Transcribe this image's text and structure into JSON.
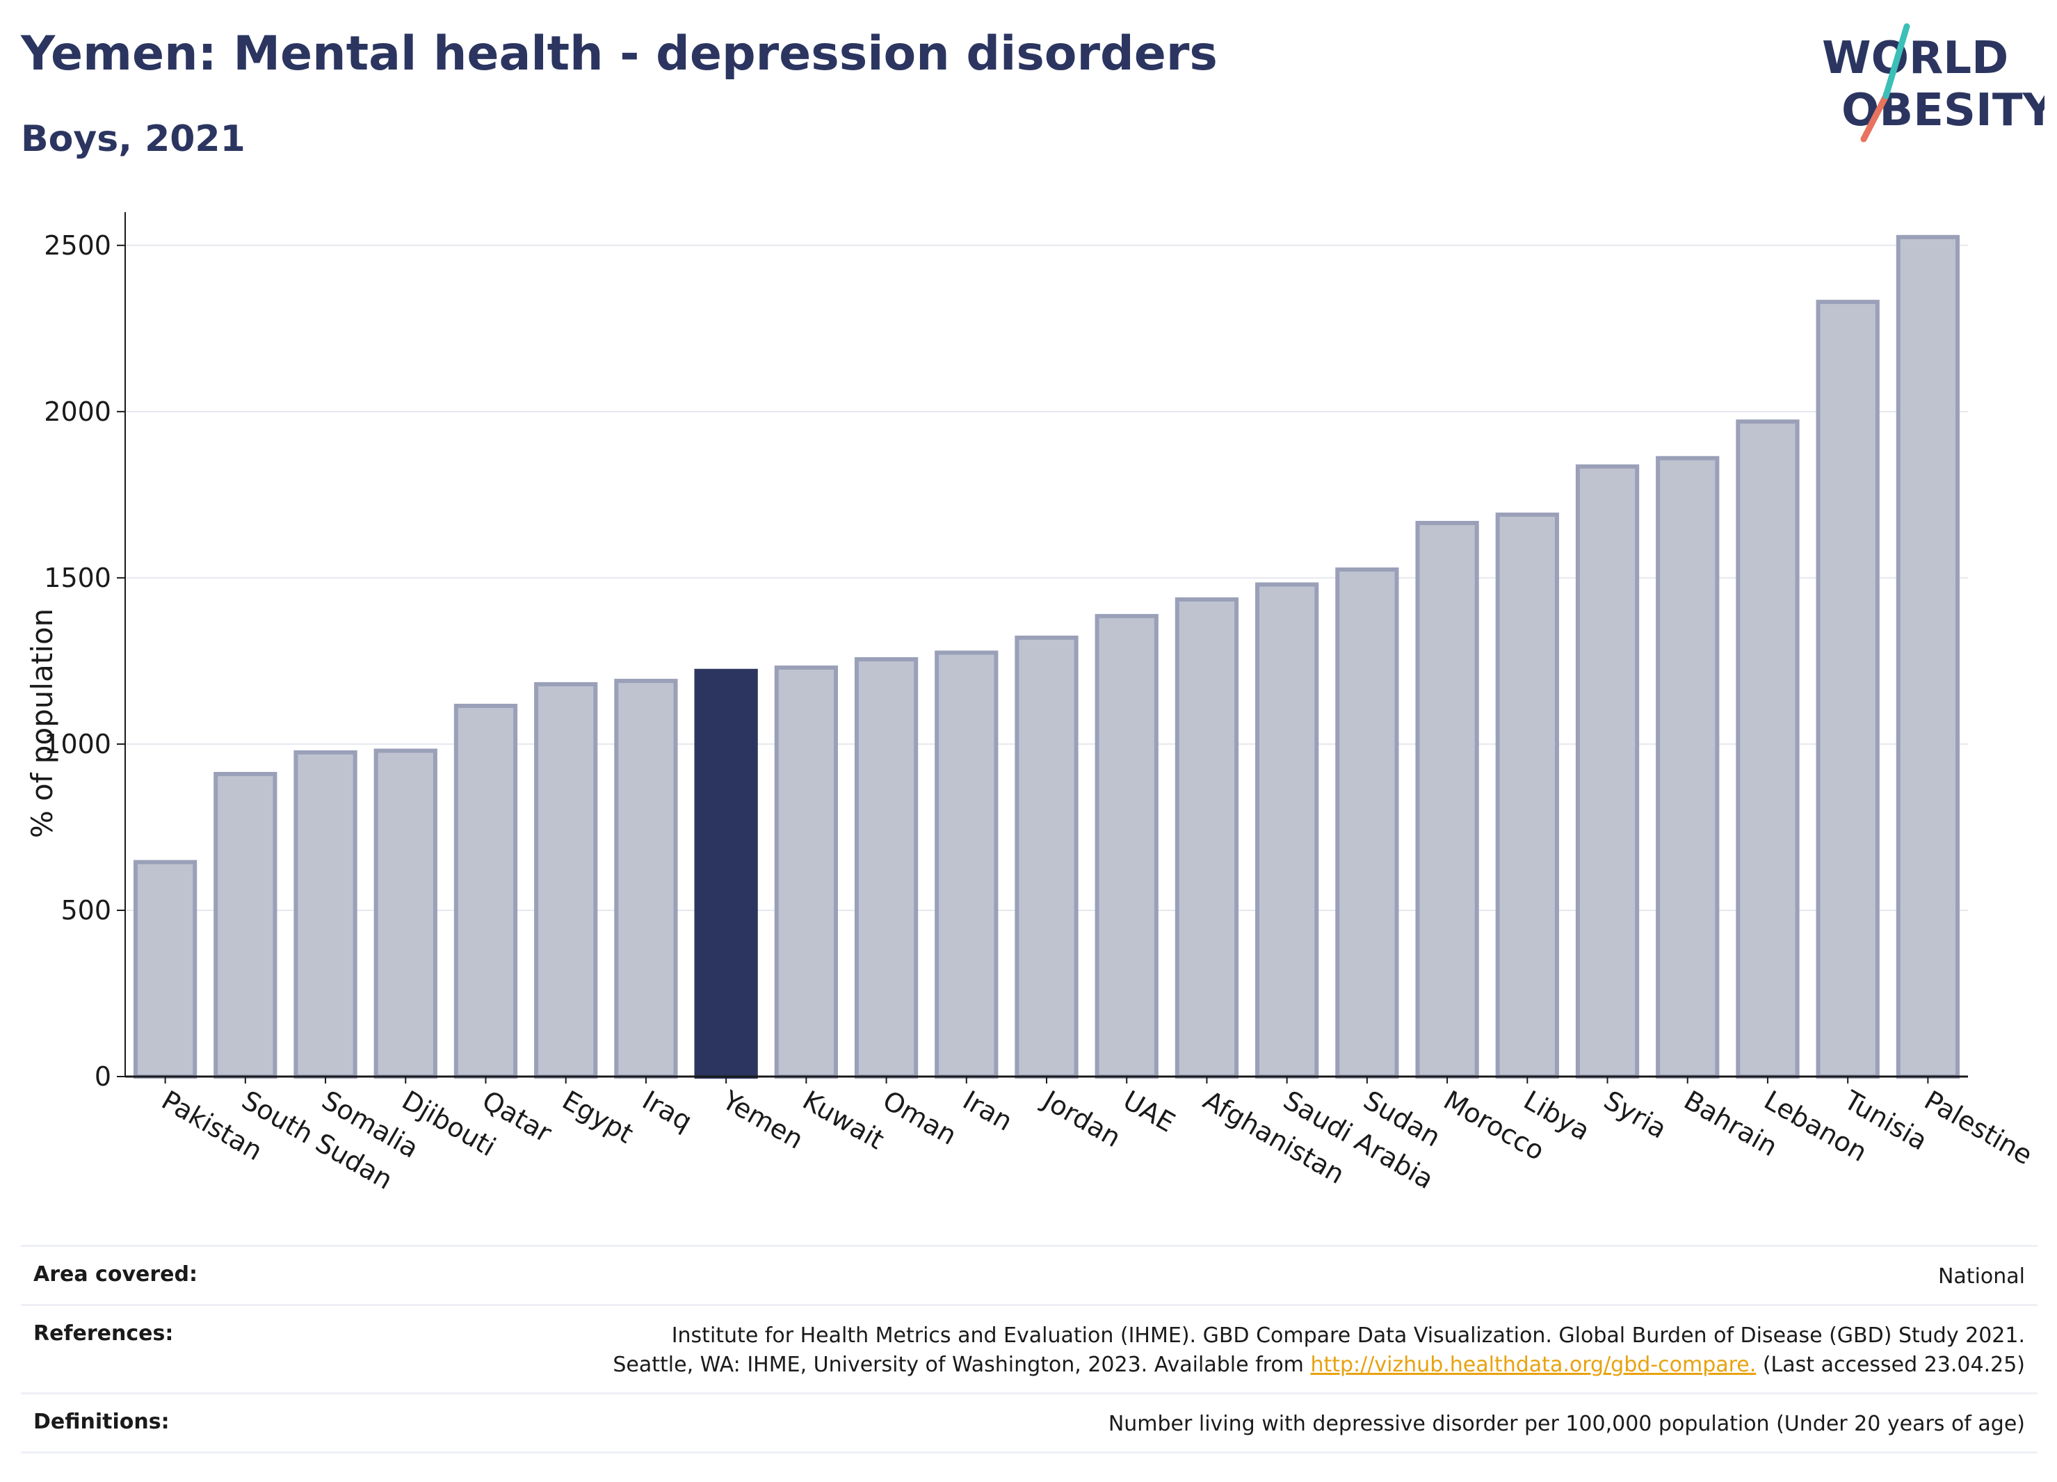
{
  "header": {
    "title": "Yemen: Mental health - depression disorders",
    "subtitle": "Boys, 2021"
  },
  "logo": {
    "line1": "WORLD",
    "line2": "OBESITY"
  },
  "chart_data": {
    "type": "bar",
    "ylabel": "% of population",
    "ylim": [
      0,
      2600
    ],
    "yticks": [
      0,
      500,
      1000,
      1500,
      2000,
      2500
    ],
    "grid": true,
    "highlight": "Yemen",
    "highlight_color": "#2b3560",
    "bar_color": "#bfc3d0",
    "bar_edge_color": "#9aa0b8",
    "categories": [
      "Pakistan",
      "South Sudan",
      "Somalia",
      "Djibouti",
      "Qatar",
      "Egypt",
      "Iraq",
      "Yemen",
      "Kuwait",
      "Oman",
      "Iran",
      "Jordan",
      "UAE",
      "Afghanistan",
      "Saudi Arabia",
      "Sudan",
      "Morocco",
      "Libya",
      "Syria",
      "Bahrain",
      "Lebanon",
      "Tunisia",
      "Palestine"
    ],
    "values": [
      645,
      910,
      975,
      980,
      1115,
      1180,
      1190,
      1220,
      1230,
      1255,
      1275,
      1320,
      1385,
      1435,
      1480,
      1525,
      1665,
      1690,
      1835,
      1860,
      1970,
      2330,
      2525
    ]
  },
  "footer": {
    "area_label": "Area covered:",
    "area_value": "National",
    "references_label": "References:",
    "references_line1": "Institute for Health Metrics and Evaluation (IHME). GBD Compare Data Visualization. Global Burden of Disease (GBD) Study 2021.",
    "references_line2_prefix": "Seattle, WA: IHME, University of Washington, 2023. Available from ",
    "references_link": "http://vizhub.healthdata.org/gbd-compare.",
    "references_line2_suffix": " (Last accessed 23.04.25)",
    "definitions_label": "Definitions:",
    "definitions_value": "Number living with depressive disorder per 100,000 population (Under 20 years of age)"
  }
}
